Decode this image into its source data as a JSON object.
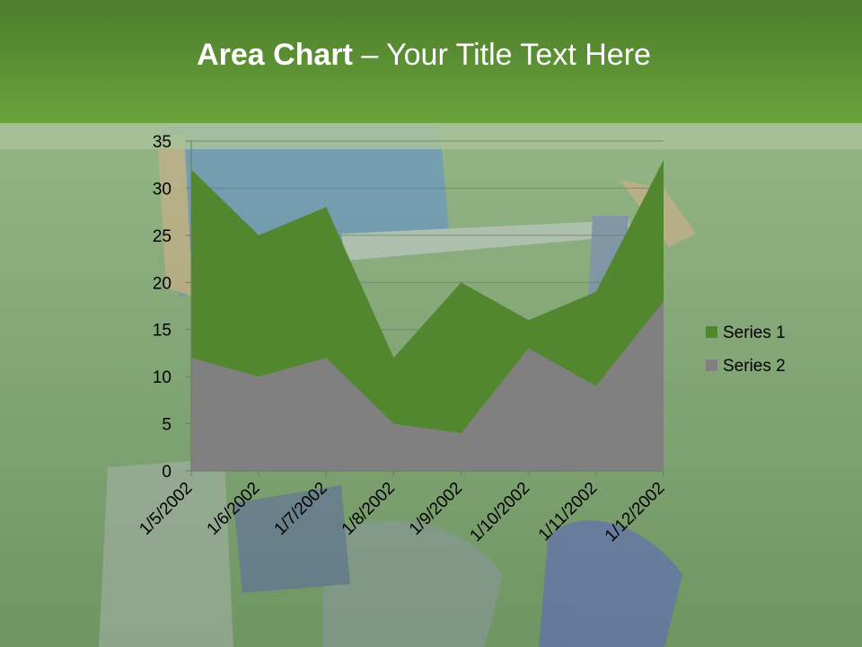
{
  "slide": {
    "title_bold": "Area Chart",
    "title_rest": " – Your Title Text Here",
    "colors": {
      "header_top": "#4e7f2b",
      "header_bottom": "#6aa33c",
      "header_band": "#a9c39a",
      "background": "#8fb07f",
      "series1": "#53872f",
      "series2": "#808080",
      "gridline": "#6b7a63",
      "text": "#000000"
    },
    "background_image": "child-riding-blue-bicycle-on-grass"
  },
  "chart_data": {
    "type": "area",
    "stacked": false,
    "categories": [
      "1/5/2002",
      "1/6/2002",
      "1/7/2002",
      "1/8/2002",
      "1/9/2002",
      "1/10/2002",
      "1/11/2002",
      "1/12/2002"
    ],
    "series": [
      {
        "name": "Series 1",
        "values": [
          32,
          25,
          28,
          12,
          20,
          16,
          19,
          33
        ]
      },
      {
        "name": "Series 2",
        "values": [
          12,
          10,
          12,
          5,
          4,
          13,
          9,
          18
        ]
      }
    ],
    "ylim": [
      0,
      35
    ],
    "yticks": [
      "0",
      "5",
      "10",
      "15",
      "20",
      "25",
      "30",
      "35"
    ],
    "grid": true,
    "legend": "right",
    "title": "",
    "xlabel": "",
    "ylabel": ""
  }
}
